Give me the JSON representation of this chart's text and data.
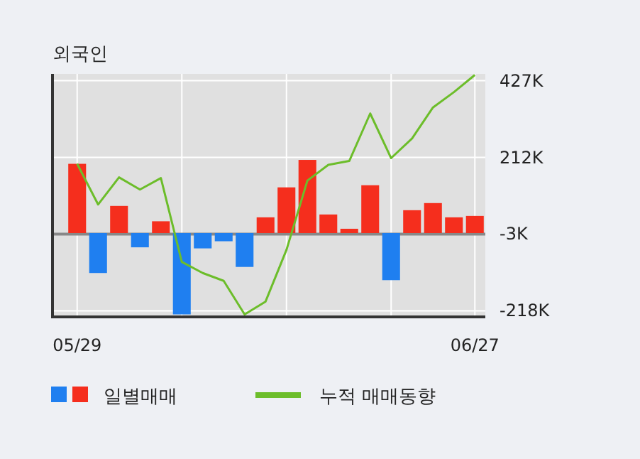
{
  "chart_data": {
    "type": "bar",
    "title": "외국인",
    "categories": [
      "05/29",
      null,
      null,
      null,
      null,
      null,
      null,
      null,
      null,
      null,
      null,
      null,
      null,
      null,
      null,
      null,
      null,
      null,
      null,
      "06/27"
    ],
    "series": [
      {
        "name": "일별매매",
        "colors": [
          "#f52e1d",
          "#1f7ff0",
          "#f52e1d",
          "#1f7ff0",
          "#f52e1d",
          "#1f7ff0",
          "#1f7ff0",
          "#1f7ff0",
          "#1f7ff0",
          "#f52e1d",
          "#f52e1d",
          "#f52e1d",
          "#f52e1d",
          "#f52e1d",
          "#f52e1d",
          "#1f7ff0",
          "#f52e1d",
          "#f52e1d",
          "#f52e1d",
          "#f52e1d"
        ],
        "values": [
          194,
          -112,
          76,
          -40,
          33,
          -228,
          -43,
          -23,
          -95,
          44,
          128,
          205,
          52,
          12,
          134,
          -132,
          64,
          84,
          44,
          48
        ]
      },
      {
        "type": "line",
        "name": "누적 매매동향",
        "color": "#6cbd2a",
        "values": [
          194,
          80,
          156,
          122,
          154,
          -81,
          -112,
          -134,
          -228,
          -192,
          -47,
          147,
          191,
          202,
          335,
          210,
          265,
          352,
          395,
          443
        ]
      }
    ],
    "ylim": [
      -235,
      446
    ],
    "yticks": [
      {
        "value": 427,
        "label": "427K"
      },
      {
        "value": 212,
        "label": "212K"
      },
      {
        "value": -3,
        "label": "-3K"
      },
      {
        "value": -218,
        "label": "-218K"
      }
    ],
    "ref_lines": [
      {
        "axis": "y",
        "value": -3,
        "color": "#888888"
      }
    ],
    "grid": true,
    "legend": "bottom"
  }
}
